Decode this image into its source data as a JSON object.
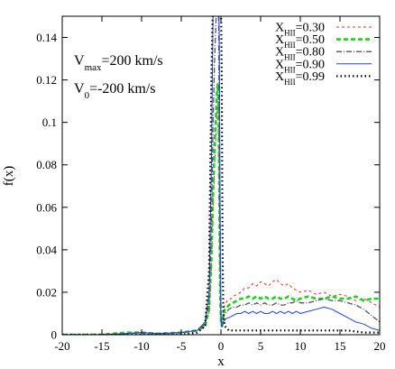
{
  "chart_data": {
    "type": "line",
    "title": "",
    "xlabel": "x",
    "ylabel": "f(x)",
    "xlim": [
      -20,
      20
    ],
    "ylim": [
      0,
      0.15
    ],
    "x_ticks": [
      "-20",
      "-15",
      "-10",
      "-5",
      "0",
      "5",
      "10",
      "15",
      "20"
    ],
    "y_ticks": [
      "0",
      "0.02",
      "0.04",
      "0.06",
      "0.08",
      "0.1",
      "0.12",
      "0.14"
    ],
    "grid": false,
    "legend_position": "top-right",
    "annotations": [
      {
        "text": "V",
        "sub": "max",
        "rest": "=200 km/s"
      },
      {
        "text": "V",
        "sub": "0",
        "rest": "=-200 km/s"
      }
    ],
    "series": [
      {
        "name": "X",
        "name_sub": "HII",
        "name_rest": "=0.30",
        "color": "#e8302a",
        "dash": "3,3",
        "width": 1,
        "x": [
          -20,
          -15,
          -12,
          -10,
          -8,
          -5,
          -3,
          -2,
          -1.5,
          -1.2,
          -1,
          -0.8,
          -0.6,
          -0.5,
          -0.4,
          -0.3,
          -0.2,
          -0.1,
          0,
          0.1,
          0.2,
          0.3,
          0.5,
          0.8,
          1,
          1.5,
          2,
          2.5,
          3,
          3.5,
          4,
          4.5,
          5,
          5.5,
          6,
          6.5,
          7,
          7.5,
          8,
          8.5,
          9,
          9.5,
          10,
          11,
          12,
          13,
          14,
          15,
          16,
          17,
          18,
          19,
          20
        ],
        "y": [
          0,
          0,
          0.0005,
          0.001,
          0.0005,
          0.001,
          0.002,
          0.004,
          0.01,
          0.03,
          0.06,
          0.08,
          0.095,
          0.105,
          0.112,
          0.1,
          0.06,
          0.02,
          0.006,
          0.004,
          0.006,
          0.012,
          0.014,
          0.016,
          0.016,
          0.018,
          0.019,
          0.02,
          0.022,
          0.022,
          0.024,
          0.023,
          0.025,
          0.024,
          0.023,
          0.025,
          0.026,
          0.024,
          0.023,
          0.024,
          0.022,
          0.021,
          0.02,
          0.021,
          0.019,
          0.02,
          0.018,
          0.019,
          0.018,
          0.016,
          0.017,
          0.015,
          0.013
        ]
      },
      {
        "name": "X",
        "name_sub": "HII",
        "name_rest": "=0.50",
        "color": "#1fd01f",
        "dash": "5,3",
        "width": 2.6,
        "x": [
          -20,
          -15,
          -12,
          -10,
          -8,
          -5,
          -3,
          -2,
          -1.5,
          -1.2,
          -1,
          -0.8,
          -0.6,
          -0.5,
          -0.4,
          -0.3,
          -0.2,
          -0.1,
          0,
          0.1,
          0.2,
          0.3,
          0.5,
          0.8,
          1,
          1.5,
          2,
          2.5,
          3,
          3.5,
          4,
          4.5,
          5,
          5.5,
          6,
          6.5,
          7,
          7.5,
          8,
          8.5,
          9,
          9.5,
          10,
          11,
          12,
          13,
          14,
          15,
          16,
          17,
          18,
          19,
          20
        ],
        "y": [
          0,
          0,
          0.001,
          0.001,
          0.0005,
          0.001,
          0.002,
          0.004,
          0.012,
          0.035,
          0.065,
          0.09,
          0.105,
          0.115,
          0.118,
          0.105,
          0.065,
          0.02,
          0.006,
          0.004,
          0.006,
          0.01,
          0.012,
          0.013,
          0.014,
          0.015,
          0.016,
          0.017,
          0.017,
          0.018,
          0.017,
          0.018,
          0.017,
          0.018,
          0.017,
          0.017,
          0.018,
          0.017,
          0.017,
          0.018,
          0.017,
          0.016,
          0.017,
          0.018,
          0.017,
          0.017,
          0.018,
          0.017,
          0.017,
          0.018,
          0.016,
          0.017,
          0.017
        ]
      },
      {
        "name": "X",
        "name_sub": "HII",
        "name_rest": "=0.80",
        "color": "#555555",
        "dash": "6,2,1,2",
        "width": 1.3,
        "x": [
          -20,
          -15,
          -12,
          -10,
          -8,
          -5,
          -3,
          -2,
          -1.5,
          -1.2,
          -1,
          -0.8,
          -0.6,
          -0.5,
          -0.4,
          -0.3,
          -0.2,
          -0.1,
          0,
          0.1,
          0.2,
          0.3,
          0.5,
          0.8,
          1,
          1.5,
          2,
          2.5,
          3,
          3.5,
          4,
          4.5,
          5,
          5.5,
          6,
          6.5,
          7,
          7.5,
          8,
          8.5,
          9,
          9.5,
          10,
          11,
          12,
          13,
          14,
          15,
          16,
          17,
          18,
          19,
          20
        ],
        "y": [
          0,
          0,
          0.0005,
          0.001,
          0.0005,
          0.001,
          0.002,
          0.005,
          0.015,
          0.05,
          0.1,
          0.13,
          0.15,
          0.16,
          0.16,
          0.15,
          0.09,
          0.03,
          0.006,
          0.004,
          0.005,
          0.008,
          0.01,
          0.011,
          0.012,
          0.013,
          0.013,
          0.014,
          0.014,
          0.015,
          0.014,
          0.015,
          0.014,
          0.015,
          0.014,
          0.014,
          0.015,
          0.014,
          0.014,
          0.015,
          0.015,
          0.016,
          0.015,
          0.015,
          0.016,
          0.017,
          0.016,
          0.016,
          0.015,
          0.014,
          0.012,
          0.009,
          0.006
        ]
      },
      {
        "name": "X",
        "name_sub": "HII",
        "name_rest": "=0.90",
        "color": "#2244ee",
        "dash": "",
        "width": 1,
        "x": [
          -20,
          -15,
          -12,
          -10,
          -8,
          -5,
          -3,
          -2,
          -1.5,
          -1.2,
          -1,
          -0.8,
          -0.6,
          -0.5,
          -0.4,
          -0.3,
          -0.2,
          -0.1,
          0,
          0.1,
          0.2,
          0.3,
          0.5,
          0.8,
          1,
          1.5,
          2,
          2.5,
          3,
          3.5,
          4,
          4.5,
          5,
          5.5,
          6,
          6.5,
          7,
          7.5,
          8,
          8.5,
          9,
          9.5,
          10,
          11,
          12,
          13,
          14,
          15,
          16,
          17,
          18,
          19,
          20
        ],
        "y": [
          0,
          0,
          0.0005,
          0.001,
          0.0005,
          0.001,
          0.002,
          0.006,
          0.02,
          0.08,
          0.15,
          0.16,
          0.16,
          0.16,
          0.16,
          0.16,
          0.14,
          0.06,
          0.01,
          0.004,
          0.004,
          0.006,
          0.007,
          0.008,
          0.008,
          0.009,
          0.01,
          0.01,
          0.011,
          0.01,
          0.011,
          0.01,
          0.011,
          0.01,
          0.01,
          0.011,
          0.01,
          0.011,
          0.01,
          0.011,
          0.01,
          0.011,
          0.01,
          0.011,
          0.012,
          0.013,
          0.012,
          0.01,
          0.008,
          0.006,
          0.005,
          0.003,
          0.002
        ]
      },
      {
        "name": "X",
        "name_sub": "HII",
        "name_rest": "=0.99",
        "color": "#000000",
        "dash": "1.5,3",
        "width": 2.2,
        "x": [
          -20,
          -15,
          -10,
          -5,
          -3,
          -2,
          -1.5,
          -1.2,
          -1,
          -0.8,
          -0.6,
          -0.5,
          -0.4,
          -0.3,
          -0.2,
          -0.1,
          0,
          0.1,
          0.2,
          0.3,
          0.5,
          1,
          2,
          4,
          6,
          8,
          10,
          12,
          14,
          16,
          18,
          20
        ],
        "y": [
          0,
          0,
          0,
          0,
          0.001,
          0.004,
          0.03,
          0.12,
          0.16,
          0.16,
          0.16,
          0.16,
          0.16,
          0.16,
          0.16,
          0.16,
          0.16,
          0.12,
          0.04,
          0.01,
          0.004,
          0.002,
          0.002,
          0.002,
          0.002,
          0.002,
          0.002,
          0.002,
          0.002,
          0.002,
          0.001,
          0.001
        ]
      }
    ]
  }
}
